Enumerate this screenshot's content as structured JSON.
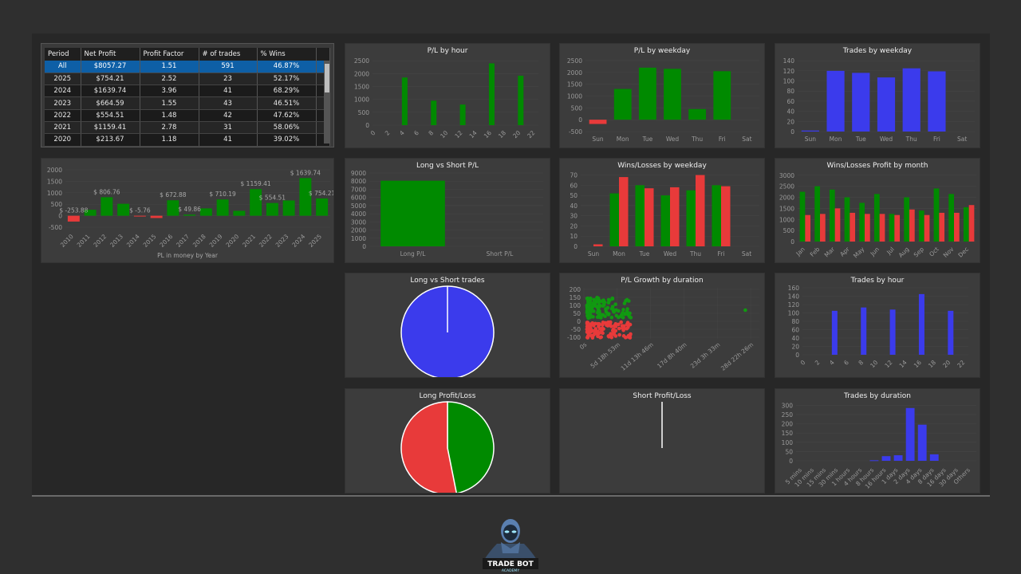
{
  "colors": {
    "green": "#008a00",
    "red": "#e83a3a",
    "blue": "#3b3bec",
    "panel": "#3c3c3c",
    "axis": "#9a9a9a",
    "title": "#f0f0f0"
  },
  "table": {
    "headers": [
      "Period",
      "Net Profit",
      "Profit Factor",
      "# of trades",
      "% Wins"
    ],
    "rows": [
      [
        "All",
        "$8057.27",
        "1.51",
        "591",
        "46.87%"
      ],
      [
        "2025",
        "$754.21",
        "2.52",
        "23",
        "52.17%"
      ],
      [
        "2024",
        "$1639.74",
        "3.96",
        "41",
        "68.29%"
      ],
      [
        "2023",
        "$664.59",
        "1.55",
        "43",
        "46.51%"
      ],
      [
        "2022",
        "$554.51",
        "1.48",
        "42",
        "47.62%"
      ],
      [
        "2021",
        "$1159.41",
        "2.78",
        "31",
        "58.06%"
      ],
      [
        "2020",
        "$213.67",
        "1.18",
        "41",
        "39.02%"
      ]
    ]
  },
  "chart_data": [
    {
      "id": "pl-by-year",
      "type": "bar",
      "title": "",
      "xlabel": "PL in money by Year",
      "categories": [
        "2010",
        "2011",
        "2012",
        "2013",
        "2014",
        "2015",
        "2016",
        "2017",
        "2018",
        "2019",
        "2020",
        "2021",
        "2022",
        "2023",
        "2024",
        "2025"
      ],
      "values": [
        -253.88,
        260,
        806.76,
        520,
        -5.76,
        -100,
        672.88,
        49.86,
        320,
        710.19,
        213.67,
        1159.41,
        554.51,
        664.59,
        1639.74,
        754.21
      ],
      "data_labels": [
        "$ -253.88",
        "",
        "$ 806.76",
        "",
        "$ -5.76",
        "",
        "$ 672.88",
        "$ 49.86",
        "",
        "$ 710.19",
        "",
        "$ 1159.41",
        "$ 554.51",
        "",
        "$ 1639.74",
        "$ 754.21"
      ],
      "yticks": [
        -500,
        0,
        500,
        1000,
        1500,
        2000
      ],
      "ylim": [
        -500,
        2000
      ]
    },
    {
      "id": "pl-by-hour",
      "type": "bar",
      "title": "P/L by hour",
      "categories": [
        "0",
        "2",
        "4",
        "6",
        "8",
        "10",
        "12",
        "14",
        "16",
        "18",
        "20",
        "22"
      ],
      "bars": [
        {
          "x": 4,
          "v": 1850
        },
        {
          "x": 8,
          "v": 950
        },
        {
          "x": 12,
          "v": 800
        },
        {
          "x": 16,
          "v": 2400
        },
        {
          "x": 20,
          "v": 1920
        }
      ],
      "yticks": [
        0,
        500,
        1000,
        1500,
        2000,
        2500
      ],
      "ylim": [
        0,
        2600
      ]
    },
    {
      "id": "pl-by-weekday",
      "type": "bar",
      "title": "P/L by weekday",
      "categories": [
        "Sun",
        "Mon",
        "Tue",
        "Wed",
        "Thu",
        "Fri",
        "Sat"
      ],
      "values": [
        -180,
        1300,
        2200,
        2150,
        450,
        2050,
        0
      ],
      "yticks": [
        -500,
        0,
        500,
        1000,
        1500,
        2000,
        2500
      ],
      "ylim": [
        -500,
        2600
      ]
    },
    {
      "id": "trades-by-weekday",
      "type": "bar",
      "title": "Trades by weekday",
      "categories": [
        "Sun",
        "Mon",
        "Tue",
        "Wed",
        "Thu",
        "Fri",
        "Sat"
      ],
      "values": [
        2,
        120,
        116,
        107,
        125,
        119,
        0
      ],
      "yticks": [
        0,
        20,
        40,
        60,
        80,
        100,
        120,
        140
      ],
      "ylim": [
        0,
        145
      ]
    },
    {
      "id": "long-vs-short-pl",
      "type": "bar",
      "title": "Long vs Short P/L",
      "categories": [
        "Long P/L",
        "Short P/L"
      ],
      "values": [
        8057.27,
        0
      ],
      "yticks": [
        0,
        1000,
        2000,
        3000,
        4000,
        5000,
        6000,
        7000,
        8000,
        9000
      ],
      "ylim": [
        0,
        9000
      ]
    },
    {
      "id": "wins-losses-by-weekday",
      "type": "bar",
      "title": "Wins/Losses by weekday",
      "categories": [
        "Sun",
        "Mon",
        "Tue",
        "Wed",
        "Thu",
        "Fri",
        "Sat"
      ],
      "series": [
        {
          "values": [
            0,
            52,
            60,
            50,
            55,
            60,
            0
          ]
        },
        {
          "values": [
            2,
            68,
            57,
            58,
            70,
            59,
            0
          ]
        }
      ],
      "yticks": [
        0,
        10,
        20,
        30,
        40,
        50,
        60,
        70
      ],
      "ylim": [
        0,
        72
      ]
    },
    {
      "id": "wins-losses-profit-by-month",
      "type": "bar",
      "title": "Wins/Losses Profit by month",
      "categories": [
        "Jan",
        "Feb",
        "Mar",
        "Apr",
        "May",
        "Jun",
        "Jul",
        "Aug",
        "Sep",
        "Oct",
        "Nov",
        "Dec"
      ],
      "series": [
        {
          "values": [
            2250,
            2500,
            2350,
            2000,
            1750,
            2150,
            1250,
            2000,
            1400,
            2400,
            2150,
            1550
          ]
        },
        {
          "values": [
            1200,
            1250,
            1500,
            1300,
            1250,
            1250,
            1200,
            1450,
            1200,
            1300,
            1300,
            1650
          ]
        }
      ],
      "yticks": [
        0,
        500,
        1000,
        1500,
        2000,
        2500,
        3000
      ],
      "ylim": [
        0,
        3100
      ]
    },
    {
      "id": "long-vs-short-trades",
      "type": "pie",
      "title": "Long vs Short trades",
      "values": [
        591,
        0
      ]
    },
    {
      "id": "pl-growth-by-duration",
      "type": "scatter",
      "title": "P/L Growth by duration",
      "xticks": [
        "0s",
        "5d 18h 53m",
        "11d 13h 46m",
        "17d 8h 40m",
        "23d 3h 33m",
        "28d 22h 26m"
      ],
      "yticks": [
        -100,
        -50,
        0,
        50,
        100,
        150,
        200
      ],
      "ylim": [
        -110,
        210
      ]
    },
    {
      "id": "trades-by-hour",
      "type": "bar",
      "title": "Trades by hour",
      "categories": [
        "0",
        "2",
        "4",
        "6",
        "8",
        "10",
        "12",
        "14",
        "16",
        "18",
        "20",
        "22"
      ],
      "bars": [
        {
          "x": 4,
          "v": 105
        },
        {
          "x": 8,
          "v": 113
        },
        {
          "x": 12,
          "v": 108
        },
        {
          "x": 16,
          "v": 145
        },
        {
          "x": 20,
          "v": 105
        }
      ],
      "yticks": [
        0,
        20,
        40,
        60,
        80,
        100,
        120,
        140,
        160
      ],
      "ylim": [
        0,
        160
      ]
    },
    {
      "id": "long-profit-loss",
      "type": "pie",
      "title": "Long Profit/Loss",
      "values": [
        277,
        314
      ]
    },
    {
      "id": "short-profit-loss",
      "type": "pie",
      "title": "Short Profit/Loss",
      "values": [
        0,
        0
      ]
    },
    {
      "id": "trades-by-duration",
      "type": "bar",
      "title": "Trades by duration",
      "categories": [
        "5 mins",
        "10 mins",
        "15 mins",
        "30 mins",
        "1 hours",
        "4 hours",
        "8 hours",
        "16 hours",
        "1 days",
        "2 days",
        "4 days",
        "8 days",
        "16 days",
        "30 days",
        "Others"
      ],
      "values": [
        0,
        0,
        0,
        0,
        0,
        0,
        3,
        25,
        30,
        285,
        195,
        35,
        0,
        0,
        0
      ],
      "yticks": [
        0,
        50,
        100,
        150,
        200,
        250,
        300
      ],
      "ylim": [
        0,
        310
      ]
    }
  ],
  "logo": {
    "line1": "TRADE BOT",
    "line2": "ACADEMY"
  }
}
